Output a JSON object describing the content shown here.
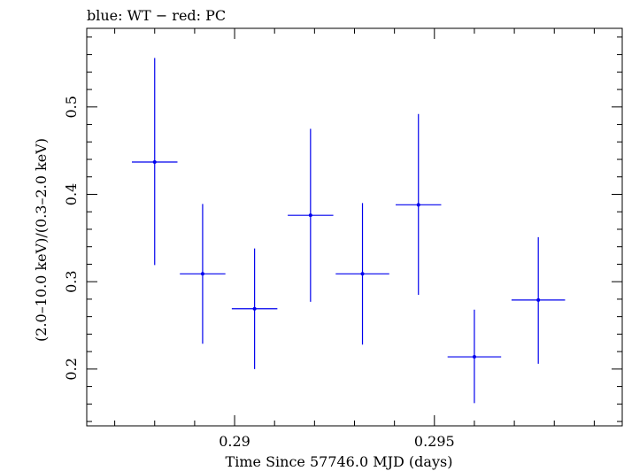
{
  "chart_data": {
    "type": "scatter",
    "title": "blue: WT − red: PC",
    "xlabel": "Time Since 57746.0 MJD (days)",
    "ylabel": "(2.0–10.0 keV)/(0.3–2.0 keV)",
    "xlim": [
      0.2863,
      0.2997
    ],
    "ylim": [
      0.135,
      0.59
    ],
    "x_ticks": [
      0.29,
      0.295
    ],
    "x_tick_labels": [
      "0.29",
      "0.295"
    ],
    "y_ticks": [
      0.2,
      0.3,
      0.4,
      0.5
    ],
    "y_tick_labels": [
      "0.2",
      "0.3",
      "0.4",
      "0.5"
    ],
    "grid": false,
    "series": [
      {
        "color": "#0000ee",
        "points": [
          {
            "x": 0.288,
            "y": 0.437,
            "xerr": 0.00057,
            "ylo": 0.319,
            "yhi": 0.556
          },
          {
            "x": 0.2892,
            "y": 0.309,
            "xerr": 0.00057,
            "ylo": 0.229,
            "yhi": 0.389
          },
          {
            "x": 0.2905,
            "y": 0.269,
            "xerr": 0.00057,
            "ylo": 0.2,
            "yhi": 0.338
          },
          {
            "x": 0.2919,
            "y": 0.376,
            "xerr": 0.00057,
            "ylo": 0.277,
            "yhi": 0.475
          },
          {
            "x": 0.2932,
            "y": 0.309,
            "xerr": 0.00067,
            "ylo": 0.228,
            "yhi": 0.39
          },
          {
            "x": 0.2946,
            "y": 0.388,
            "xerr": 0.00057,
            "ylo": 0.285,
            "yhi": 0.492
          },
          {
            "x": 0.296,
            "y": 0.214,
            "xerr": 0.00067,
            "ylo": 0.161,
            "yhi": 0.268
          },
          {
            "x": 0.2976,
            "y": 0.279,
            "xerr": 0.00067,
            "ylo": 0.206,
            "yhi": 0.351
          }
        ]
      }
    ]
  }
}
